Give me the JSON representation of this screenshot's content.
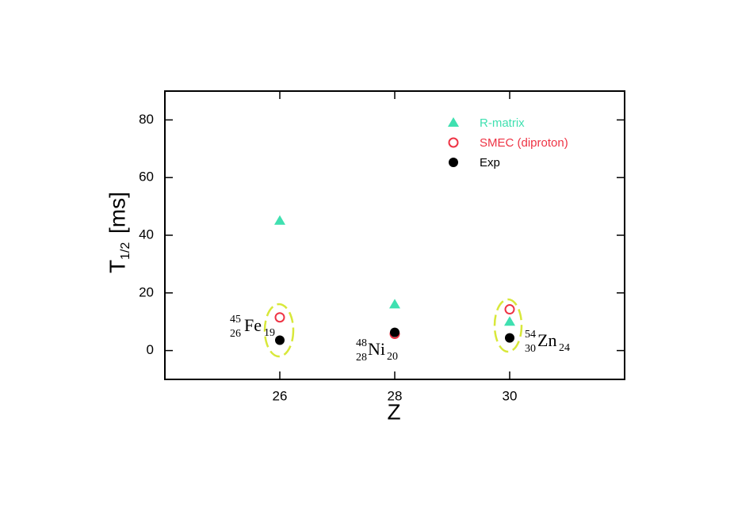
{
  "chart_data": {
    "type": "scatter",
    "xlabel": "Z",
    "ylabel": "T",
    "ylabel_sub": "1/2",
    "ylabel_unit": "[ms]",
    "x": [
      26,
      28,
      30
    ],
    "series": [
      {
        "name": "R-matrix",
        "color": "#3fe0b0",
        "marker": "triangle",
        "values": [
          45,
          16,
          10
        ]
      },
      {
        "name": "SMEC (diproton)",
        "color": "#ee3344",
        "marker": "open-circle",
        "values": [
          11.5,
          5.8,
          14.3
        ]
      },
      {
        "name": "Exp",
        "color": "#000000",
        "marker": "circle",
        "values": [
          3.6,
          6.3,
          4.4
        ]
      }
    ],
    "xlim": [
      24,
      32
    ],
    "xticks": [
      26,
      28,
      30
    ],
    "ylim": [
      -10,
      90
    ],
    "yticks": [
      0,
      20,
      40,
      60,
      80
    ],
    "legend": "upper-right",
    "annotations": [
      {
        "mass": "45",
        "z": "26",
        "symbol": "Fe",
        "n": "19"
      },
      {
        "mass": "48",
        "z": "28",
        "symbol": "Ni",
        "n": "20"
      },
      {
        "mass": "54",
        "z": "30",
        "symbol": "Zn",
        "n": "24"
      }
    ]
  }
}
